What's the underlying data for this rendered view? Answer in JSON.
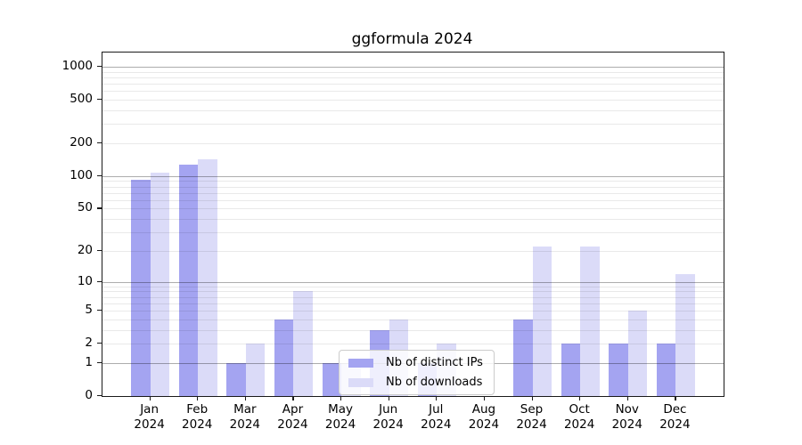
{
  "chart_data": {
    "type": "bar",
    "title": "ggformula 2024",
    "y_scale": "log1p",
    "grid": true,
    "legend_position": "lower-center-inside",
    "categories": [
      "Jan",
      "Feb",
      "Mar",
      "Apr",
      "May",
      "Jun",
      "Jul",
      "Aug",
      "Sep",
      "Oct",
      "Nov",
      "Dec"
    ],
    "x_year_label": "2024",
    "yticks": [
      0,
      1,
      2,
      5,
      10,
      20,
      50,
      100,
      200,
      500,
      1000
    ],
    "grid_major_values": [
      1,
      10,
      100,
      1000
    ],
    "ylim": [
      0,
      1350
    ],
    "series": [
      {
        "name": "Nb of distinct IPs",
        "color": "#a4a4f1",
        "values": [
          93,
          128,
          1,
          4,
          1,
          3,
          1,
          0,
          4,
          2,
          2,
          2
        ]
      },
      {
        "name": "Nb of downloads",
        "color": "#dbdbf8",
        "values": [
          108,
          143,
          2,
          8,
          1,
          4,
          2,
          0,
          22,
          22,
          5,
          12
        ]
      }
    ]
  }
}
